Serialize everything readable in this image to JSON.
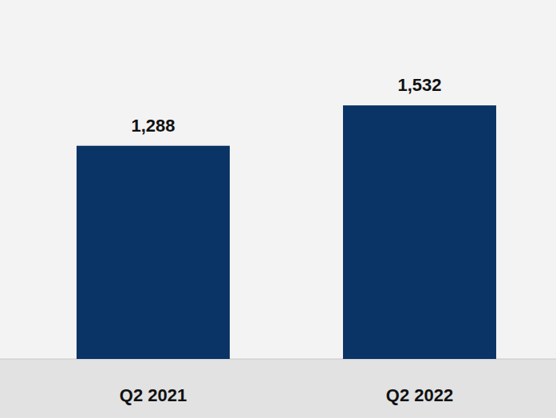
{
  "chart_data": {
    "type": "bar",
    "categories": [
      "Q2 2021",
      "Q2 2022"
    ],
    "values": [
      1288,
      1532
    ],
    "value_labels": [
      "1,288",
      "1,532"
    ],
    "color": "#0b3466",
    "ylim": [
      0,
      2000
    ],
    "data_labels": true,
    "tick_labels": "x",
    "grid": false
  }
}
